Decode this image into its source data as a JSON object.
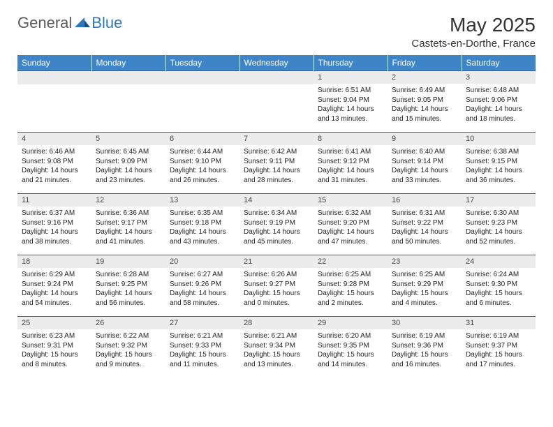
{
  "logo": {
    "general": "General",
    "blue": "Blue"
  },
  "title": "May 2025",
  "location": "Castets-en-Dorthe, France",
  "colors": {
    "header_bg": "#3d85c6",
    "header_text": "#ffffff",
    "daynum_bg": "#ececec",
    "border": "#2f5f8f",
    "logo_blue": "#2f78bd",
    "logo_gray": "#5a5a5a"
  },
  "weekdays": [
    "Sunday",
    "Monday",
    "Tuesday",
    "Wednesday",
    "Thursday",
    "Friday",
    "Saturday"
  ],
  "weeks": [
    [
      null,
      null,
      null,
      null,
      {
        "n": "1",
        "sr": "6:51 AM",
        "ss": "9:04 PM",
        "dl": "14 hours and 13 minutes."
      },
      {
        "n": "2",
        "sr": "6:49 AM",
        "ss": "9:05 PM",
        "dl": "14 hours and 15 minutes."
      },
      {
        "n": "3",
        "sr": "6:48 AM",
        "ss": "9:06 PM",
        "dl": "14 hours and 18 minutes."
      }
    ],
    [
      {
        "n": "4",
        "sr": "6:46 AM",
        "ss": "9:08 PM",
        "dl": "14 hours and 21 minutes."
      },
      {
        "n": "5",
        "sr": "6:45 AM",
        "ss": "9:09 PM",
        "dl": "14 hours and 23 minutes."
      },
      {
        "n": "6",
        "sr": "6:44 AM",
        "ss": "9:10 PM",
        "dl": "14 hours and 26 minutes."
      },
      {
        "n": "7",
        "sr": "6:42 AM",
        "ss": "9:11 PM",
        "dl": "14 hours and 28 minutes."
      },
      {
        "n": "8",
        "sr": "6:41 AM",
        "ss": "9:12 PM",
        "dl": "14 hours and 31 minutes."
      },
      {
        "n": "9",
        "sr": "6:40 AM",
        "ss": "9:14 PM",
        "dl": "14 hours and 33 minutes."
      },
      {
        "n": "10",
        "sr": "6:38 AM",
        "ss": "9:15 PM",
        "dl": "14 hours and 36 minutes."
      }
    ],
    [
      {
        "n": "11",
        "sr": "6:37 AM",
        "ss": "9:16 PM",
        "dl": "14 hours and 38 minutes."
      },
      {
        "n": "12",
        "sr": "6:36 AM",
        "ss": "9:17 PM",
        "dl": "14 hours and 41 minutes."
      },
      {
        "n": "13",
        "sr": "6:35 AM",
        "ss": "9:18 PM",
        "dl": "14 hours and 43 minutes."
      },
      {
        "n": "14",
        "sr": "6:34 AM",
        "ss": "9:19 PM",
        "dl": "14 hours and 45 minutes."
      },
      {
        "n": "15",
        "sr": "6:32 AM",
        "ss": "9:20 PM",
        "dl": "14 hours and 47 minutes."
      },
      {
        "n": "16",
        "sr": "6:31 AM",
        "ss": "9:22 PM",
        "dl": "14 hours and 50 minutes."
      },
      {
        "n": "17",
        "sr": "6:30 AM",
        "ss": "9:23 PM",
        "dl": "14 hours and 52 minutes."
      }
    ],
    [
      {
        "n": "18",
        "sr": "6:29 AM",
        "ss": "9:24 PM",
        "dl": "14 hours and 54 minutes."
      },
      {
        "n": "19",
        "sr": "6:28 AM",
        "ss": "9:25 PM",
        "dl": "14 hours and 56 minutes."
      },
      {
        "n": "20",
        "sr": "6:27 AM",
        "ss": "9:26 PM",
        "dl": "14 hours and 58 minutes."
      },
      {
        "n": "21",
        "sr": "6:26 AM",
        "ss": "9:27 PM",
        "dl": "15 hours and 0 minutes."
      },
      {
        "n": "22",
        "sr": "6:25 AM",
        "ss": "9:28 PM",
        "dl": "15 hours and 2 minutes."
      },
      {
        "n": "23",
        "sr": "6:25 AM",
        "ss": "9:29 PM",
        "dl": "15 hours and 4 minutes."
      },
      {
        "n": "24",
        "sr": "6:24 AM",
        "ss": "9:30 PM",
        "dl": "15 hours and 6 minutes."
      }
    ],
    [
      {
        "n": "25",
        "sr": "6:23 AM",
        "ss": "9:31 PM",
        "dl": "15 hours and 8 minutes."
      },
      {
        "n": "26",
        "sr": "6:22 AM",
        "ss": "9:32 PM",
        "dl": "15 hours and 9 minutes."
      },
      {
        "n": "27",
        "sr": "6:21 AM",
        "ss": "9:33 PM",
        "dl": "15 hours and 11 minutes."
      },
      {
        "n": "28",
        "sr": "6:21 AM",
        "ss": "9:34 PM",
        "dl": "15 hours and 13 minutes."
      },
      {
        "n": "29",
        "sr": "6:20 AM",
        "ss": "9:35 PM",
        "dl": "15 hours and 14 minutes."
      },
      {
        "n": "30",
        "sr": "6:19 AM",
        "ss": "9:36 PM",
        "dl": "15 hours and 16 minutes."
      },
      {
        "n": "31",
        "sr": "6:19 AM",
        "ss": "9:37 PM",
        "dl": "15 hours and 17 minutes."
      }
    ]
  ],
  "labels": {
    "sunrise": "Sunrise:",
    "sunset": "Sunset:",
    "daylight": "Daylight:"
  }
}
